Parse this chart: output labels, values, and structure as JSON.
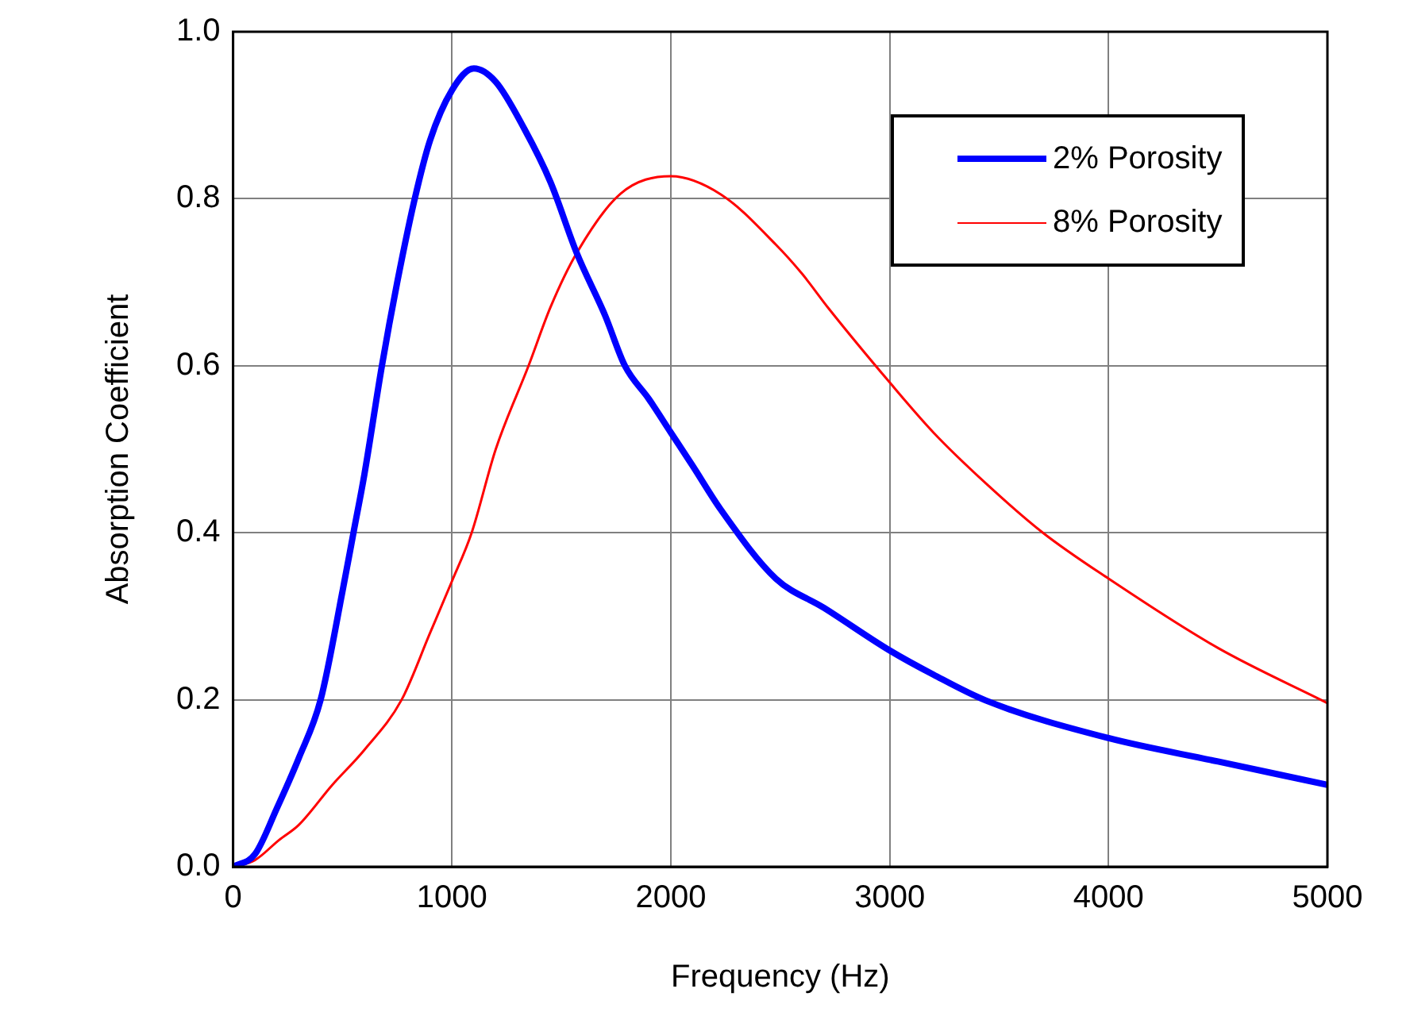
{
  "chart_data": {
    "type": "line",
    "xlabel": "Frequency (Hz)",
    "ylabel": "Absorption Coefficient",
    "xlim": [
      0,
      5000
    ],
    "xticks": [
      0,
      1000,
      2000,
      3000,
      4000,
      5000
    ],
    "ylim": [
      0,
      1.0
    ],
    "yticks": [
      {
        "value": 0,
        "label": "0.0"
      },
      0.2,
      0.4,
      0.6,
      0.8,
      {
        "value": 1.0,
        "label": "1.0"
      }
    ],
    "grid": true,
    "legend": "top right",
    "marker": "none",
    "line_style": "solid",
    "series": [
      {
        "name": "2% Porosity",
        "color": "#0000ff",
        "x": [
          0,
          100,
          200,
          300,
          400,
          500,
          550,
          600,
          680,
          750,
          830,
          900,
          1000,
          1100,
          1200,
          1330,
          1450,
          1570,
          1700,
          1790,
          1900,
          2000,
          2100,
          2230,
          2480,
          2700,
          3000,
          3200,
          3440,
          4000,
          4500,
          5000
        ],
        "values": [
          0,
          0.015,
          0.07,
          0.13,
          0.2,
          0.33,
          0.4,
          0.47,
          0.6,
          0.7,
          0.8,
          0.87,
          0.93,
          0.956,
          0.94,
          0.884,
          0.82,
          0.735,
          0.66,
          0.6,
          0.56,
          0.52,
          0.48,
          0.427,
          0.345,
          0.31,
          0.259,
          0.23,
          0.199,
          0.154,
          0.126,
          0.098
        ]
      },
      {
        "name": "8% Porosity",
        "color": "#ff0000",
        "x": [
          0,
          100,
          210,
          300,
          450,
          600,
          770,
          900,
          1000,
          1090,
          1200,
          1350,
          1450,
          1570,
          1770,
          2000,
          2230,
          2480,
          2600,
          2720,
          3000,
          3200,
          3440,
          3700,
          4000,
          4500,
          5000
        ],
        "values": [
          0,
          0.008,
          0.032,
          0.05,
          0.097,
          0.14,
          0.2,
          0.28,
          0.342,
          0.4,
          0.5,
          0.6,
          0.67,
          0.735,
          0.806,
          0.827,
          0.805,
          0.745,
          0.71,
          0.669,
          0.58,
          0.52,
          0.459,
          0.4,
          0.345,
          0.262,
          0.196
        ]
      }
    ]
  }
}
